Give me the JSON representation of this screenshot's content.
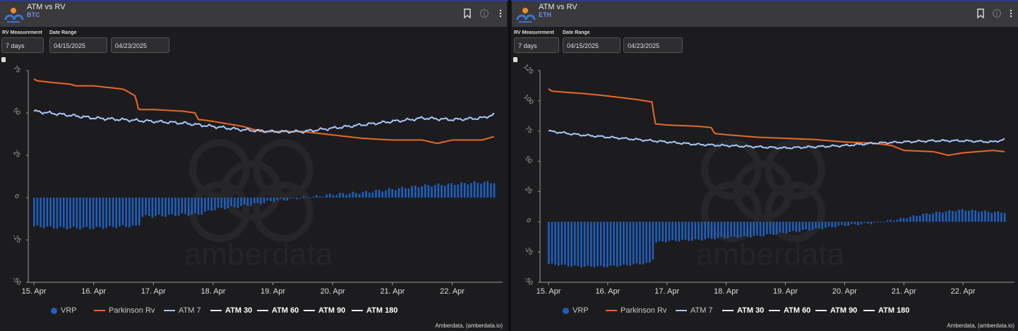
{
  "panels": [
    {
      "title": "ATM vs RV",
      "subtitle": "BTC",
      "rv_label": "RV Measurement",
      "rv_value": "7 days",
      "date_label": "Date Range",
      "date_from": "04/15/2025",
      "date_to": "04/23/2025",
      "watermark": "amberdata",
      "credit": "Amberdata, (amberdata.io)"
    },
    {
      "title": "ATM vs RV",
      "subtitle": "ETH",
      "rv_label": "RV Measurement",
      "rv_value": "7 days",
      "date_label": "Date Range",
      "date_from": "04/15/2025",
      "date_to": "04/23/2025",
      "watermark": "amberdata",
      "credit": "Amberdata, (amberdata.io)"
    }
  ],
  "colors": {
    "vrp": "#1f5fbf",
    "parkinson": "#e8692a",
    "atm7": "#a8c8ff",
    "other": "#f0f0f0"
  },
  "chart_data": [
    {
      "type": "line",
      "asset": "BTC",
      "x_tick_labels": [
        "15. Apr",
        "16. Apr",
        "17. Apr",
        "18. Apr",
        "19. Apr",
        "20. Apr",
        "21. Apr",
        "22. Apr"
      ],
      "x_range": [
        0,
        7.75
      ],
      "y_ticks": [
        75,
        50,
        25,
        0,
        -25,
        -50
      ],
      "ylim": [
        -50,
        75
      ],
      "series": [
        {
          "name": "VRP",
          "kind": "bar",
          "x": [
            0,
            0.5,
            1,
            1.5,
            1.75,
            1.8,
            2,
            2.5,
            2.75,
            3,
            3.5,
            4,
            4.5,
            4.8,
            5,
            5.5,
            6,
            6.5,
            7,
            7.5,
            7.7
          ],
          "values": [
            -17,
            -18,
            -18,
            -17,
            -17,
            -11,
            -11,
            -10,
            -10,
            -7,
            -5,
            -2,
            0,
            1,
            2,
            3,
            5,
            7,
            8,
            9,
            9
          ]
        },
        {
          "name": "Parkinson Rv",
          "x": [
            0,
            0.05,
            0.3,
            0.6,
            0.7,
            1.0,
            1.5,
            1.7,
            1.75,
            1.8,
            2.0,
            2.5,
            2.7,
            2.75,
            2.8,
            3.0,
            3.5,
            3.8,
            4.0,
            4.5,
            5.0,
            5.5,
            6.0,
            6.5,
            6.75,
            7.0,
            7.5,
            7.7
          ],
          "values": [
            70,
            69,
            68,
            67,
            66,
            66,
            64,
            60,
            52,
            52,
            52,
            51,
            50,
            46,
            46,
            45,
            42,
            39,
            39,
            39,
            37,
            35,
            34,
            34,
            32,
            34,
            34,
            36
          ]
        },
        {
          "name": "ATM 7",
          "x": [
            0,
            0.5,
            1,
            1.5,
            2,
            2.5,
            3,
            3.5,
            4,
            4.5,
            5,
            5.5,
            6,
            6.3,
            6.5,
            7,
            7.5,
            7.7
          ],
          "values": [
            51,
            49,
            47,
            46,
            45,
            44,
            42,
            40,
            39,
            39,
            41,
            43,
            45,
            46,
            47,
            46,
            47,
            49
          ]
        },
        {
          "name": "ATM 30",
          "x": [],
          "values": []
        },
        {
          "name": "ATM 60",
          "x": [],
          "values": []
        },
        {
          "name": "ATM 90",
          "x": [],
          "values": []
        },
        {
          "name": "ATM 180",
          "x": [],
          "values": []
        }
      ]
    },
    {
      "type": "line",
      "asset": "ETH",
      "x_tick_labels": [
        "15. Apr",
        "16. Apr",
        "17. Apr",
        "18. Apr",
        "19. Apr",
        "20. Apr",
        "21. Apr",
        "22. Apr"
      ],
      "x_range": [
        0,
        7.75
      ],
      "y_ticks": [
        125,
        100,
        75,
        50,
        25,
        0,
        -25,
        -50
      ],
      "ylim": [
        -50,
        125
      ],
      "series": [
        {
          "name": "VRP",
          "kind": "bar",
          "x": [
            0,
            0.5,
            1,
            1.5,
            1.75,
            1.8,
            2,
            2.5,
            3,
            3.5,
            4,
            4.5,
            5,
            5.5,
            6,
            6.3,
            6.6,
            7,
            7.5,
            7.7
          ],
          "values": [
            -35,
            -37,
            -37,
            -35,
            -34,
            -17,
            -16,
            -15,
            -13,
            -12,
            -9,
            -6,
            -3,
            -1,
            3,
            6,
            8,
            10,
            8,
            8
          ]
        },
        {
          "name": "Parkinson Rv",
          "x": [
            0,
            0.05,
            0.3,
            0.6,
            1.0,
            1.5,
            1.75,
            1.8,
            2.0,
            2.5,
            2.75,
            2.8,
            3.0,
            3.5,
            4.0,
            4.5,
            5.0,
            5.5,
            5.8,
            6.0,
            6.5,
            6.75,
            7.0,
            7.5,
            7.7
          ],
          "values": [
            110,
            108,
            107,
            106,
            104,
            101,
            99,
            81,
            80,
            79,
            78,
            73,
            72,
            70,
            69,
            68,
            66,
            65,
            63,
            59,
            58,
            55,
            57,
            59,
            58
          ]
        },
        {
          "name": "ATM 7",
          "x": [
            0,
            0.5,
            1,
            1.5,
            2,
            2.5,
            3,
            3.5,
            4,
            4.5,
            5,
            5.5,
            6,
            6.5,
            7,
            7.5,
            7.7
          ],
          "values": [
            75,
            72,
            70,
            68,
            66,
            64,
            63,
            62,
            61,
            62,
            63,
            65,
            66,
            67,
            67,
            66,
            68
          ]
        },
        {
          "name": "ATM 30",
          "x": [],
          "values": []
        },
        {
          "name": "ATM 60",
          "x": [],
          "values": []
        },
        {
          "name": "ATM 90",
          "x": [],
          "values": []
        },
        {
          "name": "ATM 180",
          "x": [],
          "values": []
        }
      ]
    }
  ]
}
